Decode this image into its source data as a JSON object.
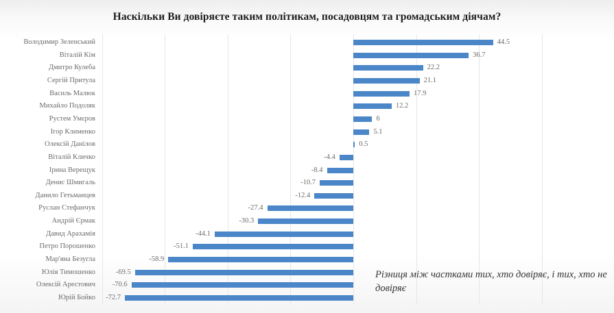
{
  "chart_data": {
    "type": "bar",
    "orientation": "horizontal",
    "title": "Наскільки Ви довіряєте таким політикам, посадовцям та громадським діячам?",
    "xlabel": "",
    "ylabel": "",
    "xlim": [
      -80,
      60
    ],
    "grid": true,
    "gridlines_at": [
      -80,
      -60,
      -40,
      -20,
      0,
      20,
      40,
      60
    ],
    "annotation": "Різниця між частками тих, хто довіряє, і тих, хто не довіряє",
    "series_color": "#4a86c8",
    "categories": [
      "Володимир Зеленський",
      "Віталій Кім",
      "Дмитро Кулеба",
      "Сергій Притула",
      "Василь Малюк",
      "Михайло Подоляк",
      "Рустем Умєров",
      "Ігор Клименко",
      "Олексій Данілов",
      "Віталій Кличко",
      "Ірина Верещук",
      "Денис Шмигаль",
      "Данило Гетьманцев",
      "Руслан Стефанчук",
      "Андрій Єрмак",
      "Давид Арахамія",
      "Петро Порошенко",
      "Мар'яна Безугла",
      "Юлія Тимошенко",
      "Олексій Арестович",
      "Юрій Бойко"
    ],
    "values": [
      44.5,
      36.7,
      22.2,
      21.1,
      17.9,
      12.2,
      6,
      5.1,
      0.5,
      -4.4,
      -8.4,
      -10.7,
      -12.4,
      -27.4,
      -30.3,
      -44.1,
      -51.1,
      -58.9,
      -69.5,
      -70.6,
      -72.7
    ],
    "value_labels": [
      "44.5",
      "36.7",
      "22.2",
      "21.1",
      "17.9",
      "12.2",
      "6",
      "5.1",
      "0.5",
      "-4.4",
      "-8.4",
      "-10.7",
      "-12.4",
      "-27.4",
      "-30.3",
      "-44.1",
      "-51.1",
      "-58.9",
      "-69.5",
      "-70.6",
      "-72.7"
    ]
  }
}
